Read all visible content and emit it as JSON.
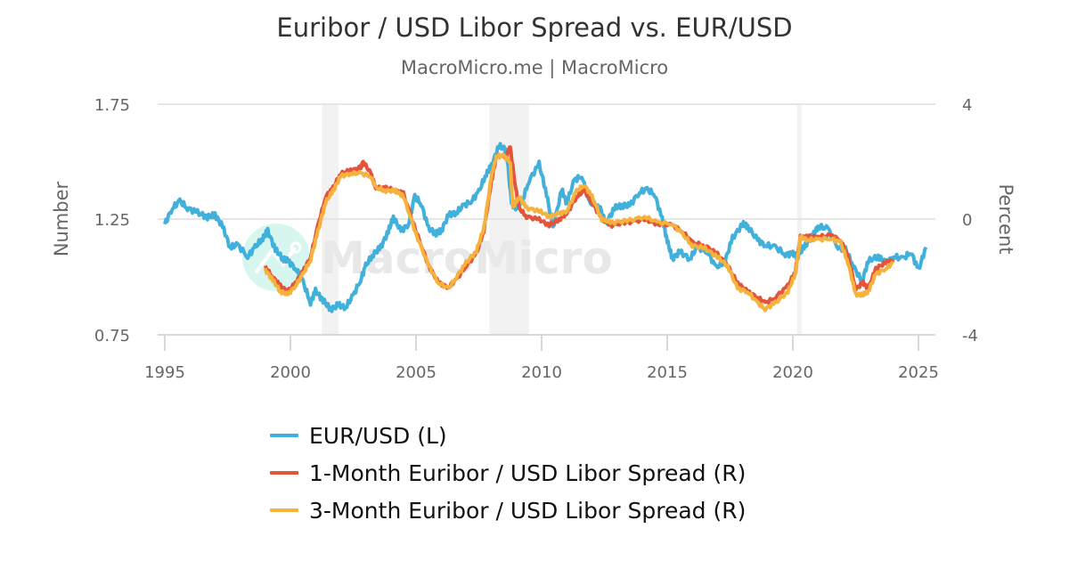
{
  "header": {
    "title": "Euribor / USD Libor Spread vs. EUR/USD",
    "subtitle": "MacroMicro.me | MacroMicro"
  },
  "watermark": {
    "text": "MacroMicro"
  },
  "colors": {
    "eurusd": "#41b0da",
    "m1": "#e4543a",
    "m3": "#f5b33d",
    "grid": "#e6e6e6",
    "band": "#f2f2f2"
  },
  "legend": {
    "items": [
      {
        "label": "EUR/USD (L)",
        "color": "#41b0da"
      },
      {
        "label": "1-Month Euribor / USD Libor Spread (R)",
        "color": "#e4543a"
      },
      {
        "label": "3-Month Euribor / USD Libor Spread (R)",
        "color": "#f5b33d"
      }
    ]
  },
  "chart_data": {
    "type": "line",
    "title": "Euribor / USD Libor Spread vs. EUR/USD",
    "subtitle": "MacroMicro.me | MacroMicro",
    "xlabel": "",
    "ylabel_left": "Number",
    "ylabel_right": "Percent",
    "x_ticks": [
      "1995",
      "2000",
      "2005",
      "2010",
      "2015",
      "2020",
      "2025"
    ],
    "y_left_ticks": [
      "0.75",
      "1.25",
      "1.75"
    ],
    "y_right_ticks": [
      "-4",
      "0",
      "4"
    ],
    "ylim_left": [
      0.75,
      1.75
    ],
    "ylim_right": [
      -4,
      4
    ],
    "xlim": [
      1994.5,
      2026.0
    ],
    "grid": true,
    "legend_position": "bottom",
    "shaded_periods": [
      [
        2001.25,
        2001.92
      ],
      [
        2007.92,
        2009.5
      ],
      [
        2020.17,
        2020.33
      ]
    ],
    "series": [
      {
        "name": "EUR/USD (L)",
        "axis": "left",
        "points": [
          [
            1995.0,
            1.23
          ],
          [
            1995.3,
            1.3
          ],
          [
            1995.6,
            1.33
          ],
          [
            1995.9,
            1.3
          ],
          [
            1996.3,
            1.28
          ],
          [
            1996.7,
            1.26
          ],
          [
            1997.0,
            1.27
          ],
          [
            1997.3,
            1.22
          ],
          [
            1997.6,
            1.13
          ],
          [
            1997.9,
            1.14
          ],
          [
            1998.3,
            1.09
          ],
          [
            1998.6,
            1.13
          ],
          [
            1998.9,
            1.17
          ],
          [
            1999.1,
            1.2
          ],
          [
            1999.4,
            1.12
          ],
          [
            1999.7,
            1.08
          ],
          [
            1999.9,
            1.07
          ],
          [
            2000.2,
            1.04
          ],
          [
            2000.5,
            0.98
          ],
          [
            2000.8,
            0.89
          ],
          [
            2001.0,
            0.94
          ],
          [
            2001.3,
            0.9
          ],
          [
            2001.6,
            0.86
          ],
          [
            2001.9,
            0.88
          ],
          [
            2002.2,
            0.87
          ],
          [
            2002.5,
            0.92
          ],
          [
            2002.8,
            0.99
          ],
          [
            2003.0,
            1.05
          ],
          [
            2003.3,
            1.1
          ],
          [
            2003.6,
            1.13
          ],
          [
            2003.9,
            1.2
          ],
          [
            2004.1,
            1.26
          ],
          [
            2004.4,
            1.2
          ],
          [
            2004.7,
            1.23
          ],
          [
            2004.95,
            1.35
          ],
          [
            2005.2,
            1.32
          ],
          [
            2005.5,
            1.21
          ],
          [
            2005.8,
            1.19
          ],
          [
            2006.0,
            1.2
          ],
          [
            2006.3,
            1.27
          ],
          [
            2006.6,
            1.28
          ],
          [
            2006.9,
            1.31
          ],
          [
            2007.2,
            1.33
          ],
          [
            2007.5,
            1.37
          ],
          [
            2007.8,
            1.45
          ],
          [
            2008.0,
            1.48
          ],
          [
            2008.3,
            1.57
          ],
          [
            2008.6,
            1.55
          ],
          [
            2008.8,
            1.32
          ],
          [
            2009.0,
            1.3
          ],
          [
            2009.2,
            1.32
          ],
          [
            2009.5,
            1.42
          ],
          [
            2009.9,
            1.49
          ],
          [
            2010.2,
            1.36
          ],
          [
            2010.45,
            1.21
          ],
          [
            2010.8,
            1.38
          ],
          [
            2011.0,
            1.32
          ],
          [
            2011.3,
            1.42
          ],
          [
            2011.6,
            1.44
          ],
          [
            2011.9,
            1.32
          ],
          [
            2012.3,
            1.31
          ],
          [
            2012.55,
            1.23
          ],
          [
            2012.9,
            1.3
          ],
          [
            2013.2,
            1.31
          ],
          [
            2013.5,
            1.31
          ],
          [
            2013.9,
            1.37
          ],
          [
            2014.2,
            1.38
          ],
          [
            2014.5,
            1.36
          ],
          [
            2014.8,
            1.25
          ],
          [
            2015.0,
            1.16
          ],
          [
            2015.2,
            1.08
          ],
          [
            2015.5,
            1.11
          ],
          [
            2015.9,
            1.08
          ],
          [
            2016.2,
            1.13
          ],
          [
            2016.6,
            1.11
          ],
          [
            2016.95,
            1.04
          ],
          [
            2017.3,
            1.07
          ],
          [
            2017.6,
            1.17
          ],
          [
            2018.0,
            1.23
          ],
          [
            2018.2,
            1.22
          ],
          [
            2018.6,
            1.16
          ],
          [
            2018.9,
            1.14
          ],
          [
            2019.3,
            1.13
          ],
          [
            2019.7,
            1.1
          ],
          [
            2020.0,
            1.1
          ],
          [
            2020.2,
            1.09
          ],
          [
            2020.5,
            1.14
          ],
          [
            2020.8,
            1.18
          ],
          [
            2021.0,
            1.22
          ],
          [
            2021.4,
            1.21
          ],
          [
            2021.8,
            1.13
          ],
          [
            2022.1,
            1.12
          ],
          [
            2022.4,
            1.05
          ],
          [
            2022.75,
            0.98
          ],
          [
            2023.0,
            1.07
          ],
          [
            2023.4,
            1.09
          ],
          [
            2023.7,
            1.06
          ],
          [
            2024.0,
            1.09
          ],
          [
            2024.4,
            1.08
          ],
          [
            2024.7,
            1.11
          ],
          [
            2025.0,
            1.03
          ],
          [
            2025.3,
            1.13
          ]
        ]
      },
      {
        "name": "1-Month Euribor / USD Libor Spread (R)",
        "axis": "right",
        "points": [
          [
            1999.0,
            -1.65
          ],
          [
            1999.3,
            -2.0
          ],
          [
            1999.6,
            -2.3
          ],
          [
            1999.9,
            -2.5
          ],
          [
            2000.2,
            -2.2
          ],
          [
            2000.5,
            -1.8
          ],
          [
            2000.8,
            -1.3
          ],
          [
            2001.1,
            -0.2
          ],
          [
            2001.4,
            0.8
          ],
          [
            2001.7,
            1.1
          ],
          [
            2002.0,
            1.6
          ],
          [
            2002.4,
            1.7
          ],
          [
            2002.8,
            1.8
          ],
          [
            2002.9,
            2.0
          ],
          [
            2003.2,
            1.6
          ],
          [
            2003.4,
            1.1
          ],
          [
            2003.8,
            1.1
          ],
          [
            2004.2,
            1.0
          ],
          [
            2004.5,
            0.9
          ],
          [
            2005.0,
            -0.4
          ],
          [
            2005.5,
            -1.6
          ],
          [
            2005.9,
            -2.2
          ],
          [
            2006.3,
            -2.35
          ],
          [
            2006.6,
            -2.1
          ],
          [
            2007.0,
            -1.6
          ],
          [
            2007.4,
            -1.2
          ],
          [
            2007.7,
            -0.4
          ],
          [
            2008.0,
            1.3
          ],
          [
            2008.2,
            2.2
          ],
          [
            2008.6,
            2.2
          ],
          [
            2008.75,
            2.5
          ],
          [
            2008.95,
            1.2
          ],
          [
            2009.1,
            0.4
          ],
          [
            2009.4,
            0.1
          ],
          [
            2009.9,
            0.0
          ],
          [
            2010.3,
            -0.2
          ],
          [
            2010.7,
            0.0
          ],
          [
            2011.0,
            0.2
          ],
          [
            2011.4,
            0.8
          ],
          [
            2011.7,
            1.0
          ],
          [
            2012.0,
            0.6
          ],
          [
            2012.4,
            0.0
          ],
          [
            2012.8,
            -0.2
          ],
          [
            2013.4,
            -0.1
          ],
          [
            2014.1,
            0.0
          ],
          [
            2014.6,
            -0.15
          ],
          [
            2015.2,
            -0.2
          ],
          [
            2015.6,
            -0.4
          ],
          [
            2016.0,
            -0.8
          ],
          [
            2016.5,
            -0.9
          ],
          [
            2017.0,
            -1.2
          ],
          [
            2017.4,
            -1.6
          ],
          [
            2017.8,
            -2.2
          ],
          [
            2018.2,
            -2.5
          ],
          [
            2018.6,
            -2.7
          ],
          [
            2018.9,
            -2.9
          ],
          [
            2019.3,
            -2.7
          ],
          [
            2019.8,
            -2.3
          ],
          [
            2020.1,
            -1.8
          ],
          [
            2020.3,
            -0.6
          ],
          [
            2020.6,
            -0.6
          ],
          [
            2021.0,
            -0.6
          ],
          [
            2021.5,
            -0.55
          ],
          [
            2021.9,
            -0.7
          ],
          [
            2022.2,
            -1.3
          ],
          [
            2022.5,
            -2.4
          ],
          [
            2022.8,
            -2.2
          ],
          [
            2023.0,
            -2.4
          ],
          [
            2023.3,
            -1.7
          ],
          [
            2023.7,
            -1.5
          ],
          [
            2024.0,
            -1.4
          ]
        ]
      },
      {
        "name": "3-Month Euribor / USD Libor Spread (R)",
        "axis": "right",
        "points": [
          [
            1999.0,
            -1.75
          ],
          [
            1999.3,
            -2.1
          ],
          [
            1999.6,
            -2.5
          ],
          [
            1999.9,
            -2.6
          ],
          [
            2000.2,
            -2.3
          ],
          [
            2000.5,
            -1.9
          ],
          [
            2000.8,
            -1.4
          ],
          [
            2001.1,
            -0.4
          ],
          [
            2001.4,
            0.6
          ],
          [
            2001.7,
            1.0
          ],
          [
            2002.0,
            1.5
          ],
          [
            2002.4,
            1.6
          ],
          [
            2002.8,
            1.6
          ],
          [
            2003.2,
            1.5
          ],
          [
            2003.4,
            1.1
          ],
          [
            2003.8,
            1.0
          ],
          [
            2004.2,
            1.0
          ],
          [
            2004.5,
            0.8
          ],
          [
            2005.0,
            -0.5
          ],
          [
            2005.5,
            -1.6
          ],
          [
            2005.9,
            -2.2
          ],
          [
            2006.3,
            -2.4
          ],
          [
            2006.6,
            -2.0
          ],
          [
            2007.0,
            -1.5
          ],
          [
            2007.4,
            -1.1
          ],
          [
            2007.7,
            -0.3
          ],
          [
            2008.0,
            1.5
          ],
          [
            2008.2,
            2.2
          ],
          [
            2008.5,
            2.2
          ],
          [
            2008.75,
            2.0
          ],
          [
            2008.85,
            0.4
          ],
          [
            2009.1,
            0.8
          ],
          [
            2009.4,
            0.4
          ],
          [
            2009.9,
            0.3
          ],
          [
            2010.3,
            0.1
          ],
          [
            2010.7,
            0.2
          ],
          [
            2011.0,
            0.3
          ],
          [
            2011.4,
            1.0
          ],
          [
            2011.7,
            1.2
          ],
          [
            2012.0,
            0.8
          ],
          [
            2012.4,
            0.0
          ],
          [
            2012.8,
            -0.1
          ],
          [
            2013.4,
            -0.05
          ],
          [
            2014.1,
            0.1
          ],
          [
            2014.6,
            -0.1
          ],
          [
            2015.2,
            -0.15
          ],
          [
            2015.6,
            -0.5
          ],
          [
            2016.0,
            -0.9
          ],
          [
            2016.5,
            -1.0
          ],
          [
            2017.0,
            -1.3
          ],
          [
            2017.4,
            -1.6
          ],
          [
            2017.8,
            -2.4
          ],
          [
            2018.2,
            -2.5
          ],
          [
            2018.6,
            -2.9
          ],
          [
            2018.9,
            -3.1
          ],
          [
            2019.3,
            -2.9
          ],
          [
            2019.8,
            -2.5
          ],
          [
            2020.1,
            -1.9
          ],
          [
            2020.3,
            -0.6
          ],
          [
            2020.6,
            -0.7
          ],
          [
            2021.0,
            -0.7
          ],
          [
            2021.5,
            -0.65
          ],
          [
            2021.9,
            -0.8
          ],
          [
            2022.2,
            -1.5
          ],
          [
            2022.5,
            -2.6
          ],
          [
            2022.8,
            -2.6
          ],
          [
            2023.0,
            -2.5
          ],
          [
            2023.3,
            -1.9
          ],
          [
            2023.7,
            -1.7
          ],
          [
            2024.0,
            -1.5
          ]
        ]
      }
    ]
  }
}
